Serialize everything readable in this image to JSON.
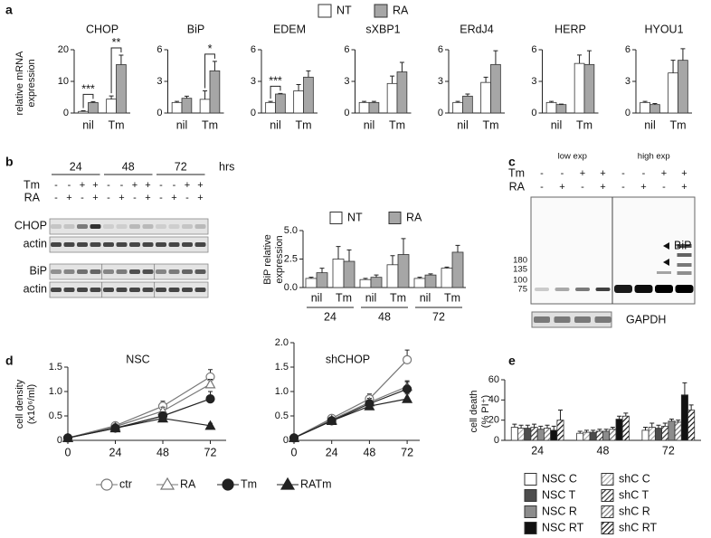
{
  "panel_labels": [
    "a",
    "b",
    "c",
    "d",
    "e"
  ],
  "chart_data": [
    {
      "type": "bar-multiples",
      "ylabel": [
        "relative mRNA",
        "expression"
      ],
      "series": [
        {
          "name": "NT",
          "color": "#ffffff"
        },
        {
          "name": "RA",
          "color": "#a6a6a6"
        }
      ],
      "panels": [
        {
          "title": "CHOP",
          "categories": [
            "nil",
            "Tm"
          ],
          "values": [
            [
              0.5,
              4.4
            ],
            [
              3.3,
              15.3
            ]
          ],
          "errors": [
            [
              0.2,
              1.0
            ],
            [
              0.3,
              3.0
            ]
          ],
          "annotations": [
            "***",
            "**"
          ],
          "ylim": [
            0,
            20
          ],
          "yticks": [
            0,
            10,
            20
          ]
        },
        {
          "title": "BiP",
          "categories": [
            "nil",
            "Tm"
          ],
          "values": [
            [
              1.0,
              1.3
            ],
            [
              1.4,
              4.0
            ]
          ],
          "errors": [
            [
              0.1,
              0.8
            ],
            [
              0.2,
              0.9
            ]
          ],
          "annotations": [
            null,
            "*"
          ],
          "ylim": [
            0,
            6
          ],
          "yticks": [
            0,
            3,
            6
          ]
        },
        {
          "title": "EDEM",
          "categories": [
            "nil",
            "Tm"
          ],
          "values": [
            [
              1.0,
              2.1
            ],
            [
              1.8,
              3.4
            ]
          ],
          "errors": [
            [
              0.1,
              0.6
            ],
            [
              0.05,
              0.6
            ]
          ],
          "annotations": [
            "***",
            null
          ],
          "ylim": [
            0,
            6
          ],
          "yticks": [
            0,
            3,
            6
          ]
        },
        {
          "title": "sXBP1",
          "categories": [
            "nil",
            "Tm"
          ],
          "values": [
            [
              1.0,
              2.8
            ],
            [
              1.0,
              3.9
            ]
          ],
          "errors": [
            [
              0.1,
              0.7
            ],
            [
              0.1,
              0.9
            ]
          ],
          "ylim": [
            0,
            6
          ],
          "yticks": [
            0,
            3,
            6
          ]
        },
        {
          "title": "ERdJ4",
          "categories": [
            "nil",
            "Tm"
          ],
          "values": [
            [
              1.0,
              2.9
            ],
            [
              1.6,
              4.6
            ]
          ],
          "errors": [
            [
              0.1,
              0.5
            ],
            [
              0.2,
              1.3
            ]
          ],
          "ylim": [
            0,
            6
          ],
          "yticks": [
            0,
            3,
            6
          ]
        },
        {
          "title": "HERP",
          "categories": [
            "nil",
            "Tm"
          ],
          "values": [
            [
              1.0,
              4.7
            ],
            [
              0.8,
              4.6
            ]
          ],
          "errors": [
            [
              0.1,
              0.8
            ],
            [
              0.05,
              1.3
            ]
          ],
          "ylim": [
            0,
            6
          ],
          "yticks": [
            0,
            3,
            6
          ]
        },
        {
          "title": "HYOU1",
          "categories": [
            "nil",
            "Tm"
          ],
          "values": [
            [
              1.0,
              3.8
            ],
            [
              0.8,
              5.0
            ]
          ],
          "errors": [
            [
              0.1,
              1.2
            ],
            [
              0.1,
              1.1
            ]
          ],
          "ylim": [
            0,
            6
          ],
          "yticks": [
            0,
            3,
            6
          ]
        }
      ]
    },
    {
      "type": "bar",
      "ylabel": [
        "BiP relative",
        "expression"
      ],
      "categories": [
        "nil",
        "Tm",
        "nil",
        "Tm",
        "nil",
        "Tm"
      ],
      "groups": [
        "24",
        "48",
        "72"
      ],
      "series": [
        {
          "name": "NT",
          "color": "#ffffff",
          "values": [
            0.8,
            2.5,
            0.7,
            2.0,
            0.8,
            1.7
          ],
          "errors": [
            0.1,
            1.1,
            0.1,
            0.8,
            0.1,
            0.1
          ]
        },
        {
          "name": "RA",
          "color": "#a6a6a6",
          "values": [
            1.3,
            2.3,
            0.9,
            2.9,
            1.1,
            3.1
          ],
          "errors": [
            0.4,
            1.0,
            0.2,
            1.4,
            0.1,
            0.6
          ]
        }
      ],
      "ylim": [
        0,
        5
      ],
      "yticks": [
        {
          "value": 0,
          "label": "0.0"
        },
        {
          "value": 2.5,
          "label": "2.5"
        },
        {
          "value": 5,
          "label": "5.0"
        }
      ]
    },
    {
      "type": "line-multiples",
      "ylabel": [
        "cell density",
        "(x10⁶/ml)"
      ],
      "x": [
        0,
        24,
        48,
        72
      ],
      "xlim": [
        0,
        80
      ],
      "xticks": [
        0,
        24,
        48,
        72
      ],
      "series": [
        {
          "name": "ctr",
          "marker": "circle",
          "filled": false,
          "color": "#777777"
        },
        {
          "name": "RA",
          "marker": "triangle",
          "filled": false,
          "color": "#777777"
        },
        {
          "name": "Tm",
          "marker": "circle",
          "filled": true,
          "color": "#222222"
        },
        {
          "name": "RATm",
          "marker": "triangle",
          "filled": true,
          "color": "#222222"
        }
      ],
      "panels": [
        {
          "title": "NSC",
          "ylim": [
            0,
            1.5
          ],
          "yticks": [
            0,
            0.5,
            {
              "value": 1,
              "label": "1.0"
            },
            1.5
          ],
          "values": [
            [
              0.05,
              0.3,
              0.7,
              1.3
            ],
            [
              0.05,
              0.28,
              0.6,
              1.15
            ],
            [
              0.05,
              0.25,
              0.5,
              0.85
            ],
            [
              0.05,
              0.25,
              0.45,
              0.3
            ]
          ],
          "errors": [
            [
              0,
              0.05,
              0.1,
              0.15
            ],
            [
              0,
              0.05,
              0.08,
              0.1
            ],
            [
              0,
              0.05,
              0.08,
              0.15
            ],
            [
              0,
              0.03,
              0.05,
              0.05
            ]
          ]
        },
        {
          "title": "shCHOP",
          "ylim": [
            0,
            2
          ],
          "yticks": [
            0,
            0.5,
            {
              "value": 1,
              "label": "1.0"
            },
            1.5,
            {
              "value": 2,
              "label": "2.0"
            }
          ],
          "values": [
            [
              0.05,
              0.45,
              0.85,
              1.65
            ],
            [
              0.05,
              0.42,
              0.78,
              1.1
            ],
            [
              0.05,
              0.4,
              0.75,
              1.05
            ],
            [
              0.05,
              0.4,
              0.7,
              0.85
            ]
          ],
          "errors": [
            [
              0,
              0.05,
              0.1,
              0.2
            ],
            [
              0,
              0.05,
              0.08,
              0.12
            ],
            [
              0,
              0.05,
              0.08,
              0.15
            ],
            [
              0,
              0.04,
              0.06,
              0.1
            ]
          ]
        }
      ]
    },
    {
      "type": "bar",
      "ylabel": [
        "cell death",
        "(% PI⁺)"
      ],
      "categories": [
        "24",
        "48",
        "72"
      ],
      "ylim": [
        0,
        60
      ],
      "yticks": [
        0,
        20,
        40,
        60
      ],
      "series": [
        {
          "name": "NSC C",
          "color": "#ffffff",
          "hatch": false,
          "values": [
            13,
            7,
            10
          ],
          "errors": [
            3,
            2,
            3
          ]
        },
        {
          "name": "shC C",
          "color": "#aaaaaa",
          "hatch": true,
          "values": [
            12,
            8,
            13
          ],
          "errors": [
            3,
            2,
            4
          ]
        },
        {
          "name": "NSC T",
          "color": "#4d4d4d",
          "hatch": false,
          "values": [
            12,
            8,
            12
          ],
          "errors": [
            3,
            2,
            3
          ]
        },
        {
          "name": "shC T",
          "color": "#333333",
          "hatch": true,
          "values": [
            13,
            9,
            14
          ],
          "errors": [
            3,
            2,
            3
          ]
        },
        {
          "name": "NSC R",
          "color": "#8c8c8c",
          "hatch": false,
          "values": [
            11,
            9,
            19
          ],
          "errors": [
            3,
            2,
            2
          ]
        },
        {
          "name": "shC R",
          "color": "#777777",
          "hatch": true,
          "values": [
            12,
            11,
            18
          ],
          "errors": [
            3,
            2,
            2
          ]
        },
        {
          "name": "NSC RT",
          "color": "#111111",
          "hatch": false,
          "values": [
            10,
            21,
            45
          ],
          "errors": [
            4,
            3,
            12
          ]
        },
        {
          "name": "shC RT",
          "color": "#111111",
          "hatch": true,
          "values": [
            20,
            24,
            30
          ],
          "errors": [
            10,
            3,
            5
          ]
        }
      ]
    }
  ],
  "blot_b": {
    "times": [
      "24",
      "48",
      "72"
    ],
    "unit": "hrs",
    "treatments": [
      {
        "label": "Tm",
        "signs": [
          "-",
          "-",
          "+",
          "+",
          "-",
          "-",
          "+",
          "+",
          "-",
          "-",
          "+",
          "+"
        ]
      },
      {
        "label": "RA",
        "signs": [
          "-",
          "+",
          "-",
          "+",
          "-",
          "+",
          "-",
          "+",
          "-",
          "+",
          "-",
          "+"
        ]
      }
    ],
    "bands": [
      "CHOP",
      "actin",
      "BiP",
      "actin"
    ]
  },
  "blot_c": {
    "exposures": [
      "low exp",
      "high exp"
    ],
    "treatments": [
      {
        "label": "Tm",
        "signs": [
          "-",
          "-",
          "+",
          "+",
          "-",
          "-",
          "+",
          "+"
        ]
      },
      {
        "label": "RA",
        "signs": [
          "-",
          "+",
          "-",
          "+",
          "-",
          "+",
          "-",
          "+"
        ]
      }
    ],
    "markers": [
      "180",
      "135",
      "100",
      "75"
    ],
    "target": "BiP",
    "loading": "GAPDH"
  }
}
